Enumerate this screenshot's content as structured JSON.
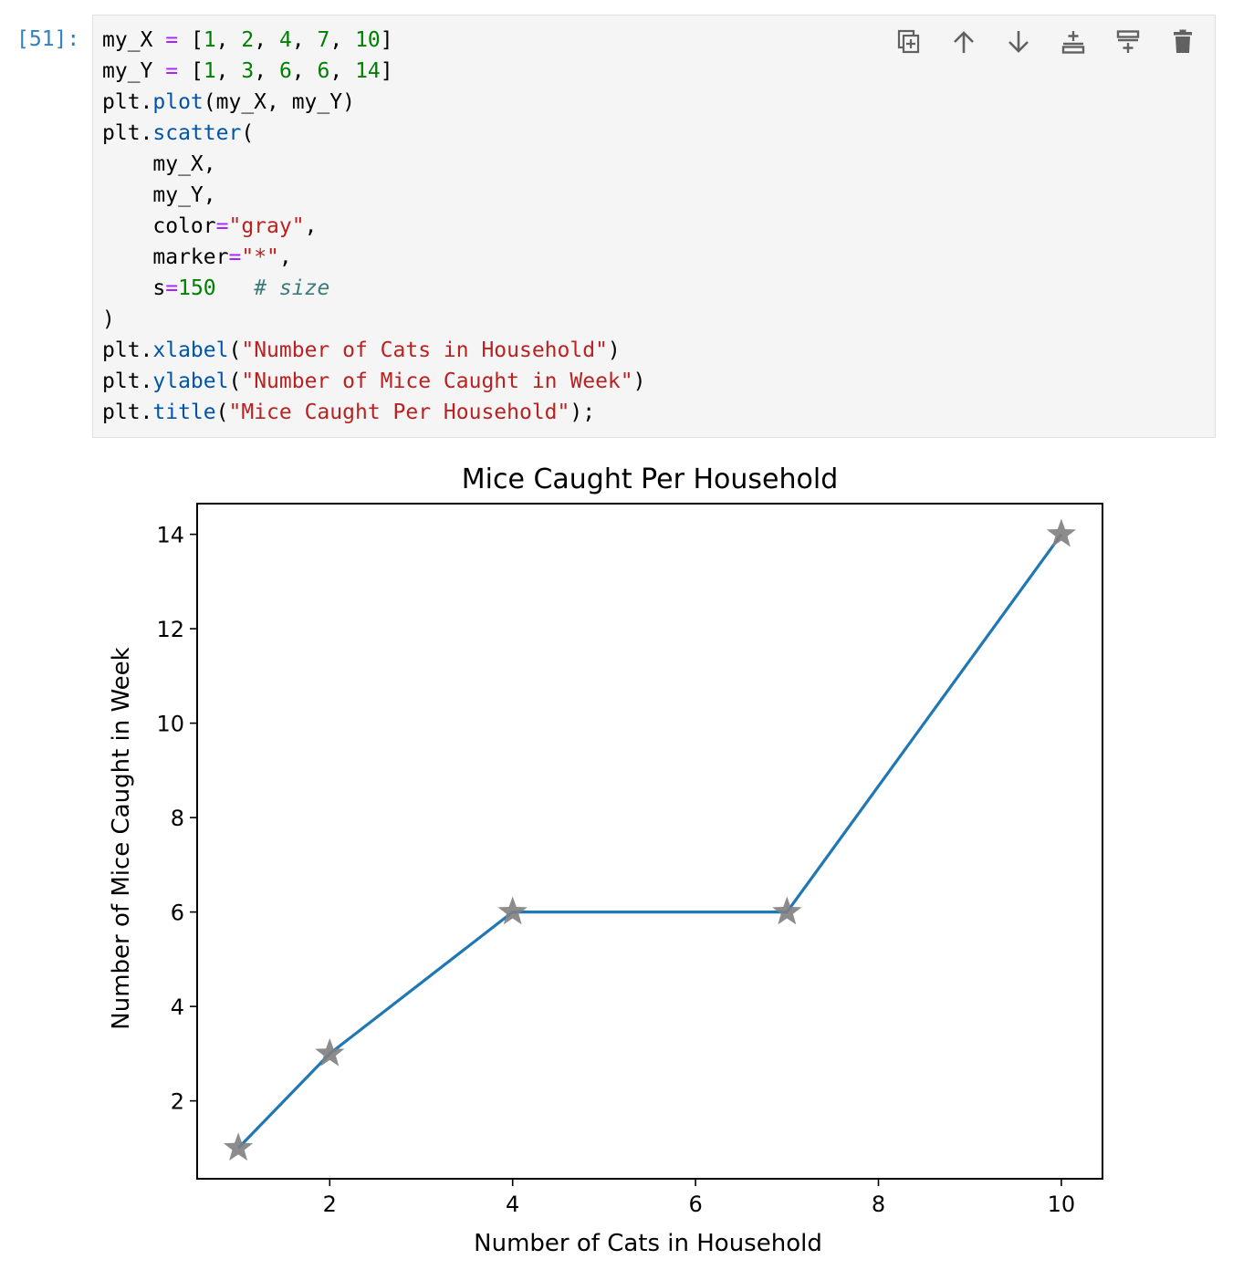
{
  "cell": {
    "prompt": "[51]:",
    "code_lines": [
      [
        [
          "my_X ",
          "default"
        ],
        [
          "=",
          "op"
        ],
        [
          " [",
          "default"
        ],
        [
          "1",
          "num"
        ],
        [
          ", ",
          "default"
        ],
        [
          "2",
          "num"
        ],
        [
          ", ",
          "default"
        ],
        [
          "4",
          "num"
        ],
        [
          ", ",
          "default"
        ],
        [
          "7",
          "num"
        ],
        [
          ", ",
          "default"
        ],
        [
          "10",
          "num"
        ],
        [
          "]",
          "default"
        ]
      ],
      [
        [
          "my_Y ",
          "default"
        ],
        [
          "=",
          "op"
        ],
        [
          " [",
          "default"
        ],
        [
          "1",
          "num"
        ],
        [
          ", ",
          "default"
        ],
        [
          "3",
          "num"
        ],
        [
          ", ",
          "default"
        ],
        [
          "6",
          "num"
        ],
        [
          ", ",
          "default"
        ],
        [
          "6",
          "num"
        ],
        [
          ", ",
          "default"
        ],
        [
          "14",
          "num"
        ],
        [
          "]",
          "default"
        ]
      ],
      [
        [
          "plt.",
          "default"
        ],
        [
          "plot",
          "fn"
        ],
        [
          "(my_X, my_Y)",
          "default"
        ]
      ],
      [
        [
          "plt.",
          "default"
        ],
        [
          "scatter",
          "fn"
        ],
        [
          "(",
          "default"
        ]
      ],
      [
        [
          "    my_X,",
          "default"
        ]
      ],
      [
        [
          "    my_Y,",
          "default"
        ]
      ],
      [
        [
          "    color",
          "default"
        ],
        [
          "=",
          "op"
        ],
        [
          "\"gray\"",
          "str"
        ],
        [
          ",",
          "default"
        ]
      ],
      [
        [
          "    marker",
          "default"
        ],
        [
          "=",
          "op"
        ],
        [
          "\"*\"",
          "str"
        ],
        [
          ",",
          "default"
        ]
      ],
      [
        [
          "    s",
          "default"
        ],
        [
          "=",
          "op"
        ],
        [
          "150",
          "num"
        ],
        [
          "   ",
          "default"
        ],
        [
          "# size",
          "comment"
        ]
      ],
      [
        [
          ")",
          "default"
        ]
      ],
      [
        [
          "plt.",
          "default"
        ],
        [
          "xlabel",
          "fn"
        ],
        [
          "(",
          "default"
        ],
        [
          "\"Number of Cats in Household\"",
          "str"
        ],
        [
          ")",
          "default"
        ]
      ],
      [
        [
          "plt.",
          "default"
        ],
        [
          "ylabel",
          "fn"
        ],
        [
          "(",
          "default"
        ],
        [
          "\"Number of Mice Caught in Week\"",
          "str"
        ],
        [
          ")",
          "default"
        ]
      ],
      [
        [
          "plt.",
          "default"
        ],
        [
          "title",
          "fn"
        ],
        [
          "(",
          "default"
        ],
        [
          "\"Mice Caught Per Household\"",
          "str"
        ],
        [
          ");",
          "default"
        ]
      ]
    ]
  },
  "toolbar": {
    "buttons": [
      {
        "name": "duplicate-cell-button",
        "icon": "copy-icon"
      },
      {
        "name": "move-up-button",
        "icon": "arrow-up-icon"
      },
      {
        "name": "move-down-button",
        "icon": "arrow-down-icon"
      },
      {
        "name": "insert-below-button",
        "icon": "insert-below-icon"
      },
      {
        "name": "insert-above-button",
        "icon": "insert-above-icon"
      },
      {
        "name": "delete-cell-button",
        "icon": "trash-icon"
      }
    ],
    "icon_color": "#616161"
  },
  "chart_data": {
    "type": "line",
    "title": "Mice Caught Per Household",
    "xlabel": "Number of Cats in Household",
    "ylabel": "Number of Mice Caught in Week",
    "x": [
      1,
      2,
      4,
      7,
      10
    ],
    "series": [
      {
        "values": [
          1,
          3,
          6,
          6,
          14
        ],
        "color": "#1f77b4",
        "marker": "star",
        "marker_color": "#808080"
      }
    ],
    "xlim": [
      0.55,
      10.45
    ],
    "ylim": [
      0.35,
      14.65
    ],
    "xticks": [
      2,
      4,
      6,
      8,
      10
    ],
    "yticks": [
      2,
      4,
      6,
      8,
      10,
      12,
      14
    ],
    "grid": false
  }
}
